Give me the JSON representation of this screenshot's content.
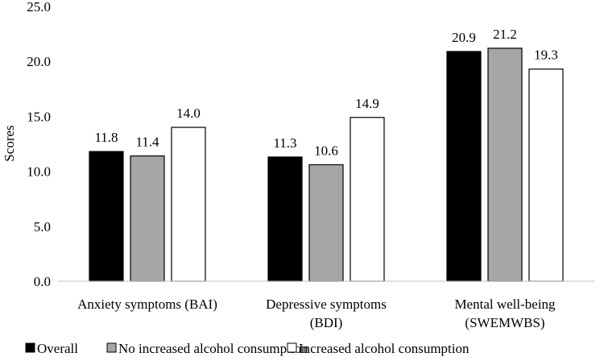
{
  "chart_data": {
    "type": "bar",
    "categories": [
      [
        "Anxiety symptoms (BAI)"
      ],
      [
        "Depressive symptoms",
        "(BDI)"
      ],
      [
        "Mental well-being",
        "(SWEMWBS)"
      ]
    ],
    "series": [
      {
        "name": "Overall",
        "values": [
          11.8,
          11.3,
          20.9
        ],
        "color": "#000000"
      },
      {
        "name": "No increased alcohol consumption",
        "values": [
          11.4,
          10.6,
          21.2
        ],
        "color": "#a6a6a6"
      },
      {
        "name": "Increased alcohol consumption",
        "values": [
          14.0,
          14.9,
          19.3
        ],
        "color": "#ffffff"
      }
    ],
    "ylabel": "Scores",
    "ylim": [
      0,
      25
    ],
    "yticks": [
      0,
      5,
      10,
      15,
      20,
      25
    ],
    "ytick_labels": [
      "0.0",
      "5.0",
      "10.0",
      "15.0",
      "20.0",
      "25.0"
    ],
    "data_labels": [
      [
        "11.8",
        "11.3",
        "20.9"
      ],
      [
        "11.4",
        "10.6",
        "21.2"
      ],
      [
        "14.0",
        "14.9",
        "19.3"
      ]
    ],
    "grid": false,
    "legend_position": "bottom",
    "bar_edge_color": "#000000",
    "axis_color": "#bfbfbf"
  }
}
